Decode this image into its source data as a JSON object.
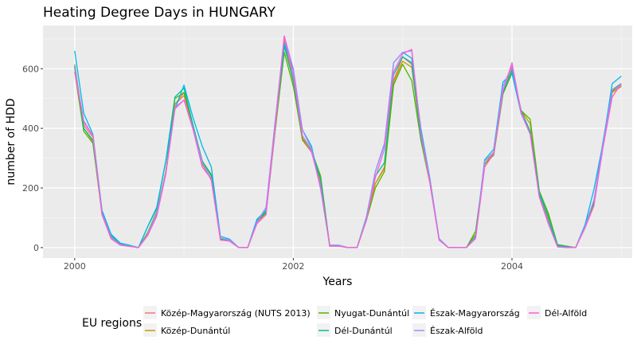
{
  "chart_data": {
    "type": "line",
    "title": "Heating Degree Days in HUNGARY",
    "xlabel": "Years",
    "ylabel": "number of HDD",
    "xlim": [
      1999.71,
      2005.1
    ],
    "ylim": [
      -35,
      745
    ],
    "x_ticks": [
      2000,
      2002,
      2004
    ],
    "x_tick_labels": [
      "2000",
      "2002",
      "2004"
    ],
    "y_ticks": [
      0,
      200,
      400,
      600
    ],
    "y_tick_labels": [
      "0",
      "200",
      "400",
      "600"
    ],
    "grid": true,
    "legend_title": "EU regions",
    "legend_position": "bottom",
    "x": [
      2000.0,
      2000.083,
      2000.167,
      2000.25,
      2000.333,
      2000.417,
      2000.5,
      2000.583,
      2000.667,
      2000.75,
      2000.833,
      2000.917,
      2001.0,
      2001.083,
      2001.167,
      2001.25,
      2001.333,
      2001.417,
      2001.5,
      2001.583,
      2001.667,
      2001.75,
      2001.833,
      2001.917,
      2002.0,
      2002.083,
      2002.167,
      2002.25,
      2002.333,
      2002.417,
      2002.5,
      2002.583,
      2002.667,
      2002.75,
      2002.833,
      2002.917,
      2003.0,
      2003.083,
      2003.167,
      2003.25,
      2003.333,
      2003.417,
      2003.5,
      2003.583,
      2003.667,
      2003.75,
      2003.833,
      2003.917,
      2004.0,
      2004.083,
      2004.167,
      2004.25,
      2004.333,
      2004.417,
      2004.5,
      2004.583,
      2004.667,
      2004.75,
      2004.833,
      2004.917,
      2005.0
    ],
    "series": [
      {
        "name": "Közép-Magyarország (NUTS 2013)",
        "color": "#F8766D",
        "values": [
          615,
          410,
          370,
          115,
          35,
          10,
          5,
          0,
          40,
          110,
          250,
          480,
          510,
          400,
          285,
          225,
          28,
          22,
          0,
          0,
          85,
          115,
          400,
          700,
          560,
          365,
          320,
          215,
          5,
          5,
          0,
          0,
          95,
          215,
          270,
          560,
          640,
          615,
          375,
          225,
          28,
          0,
          0,
          0,
          40,
          280,
          320,
          515,
          605,
          460,
          385,
          180,
          95,
          5,
          2,
          0,
          70,
          150,
          350,
          525,
          545
        ]
      },
      {
        "name": "Közép-Dunántúl",
        "color": "#C49A00",
        "values": [
          605,
          400,
          355,
          110,
          30,
          8,
          4,
          0,
          45,
          115,
          255,
          480,
          520,
          400,
          280,
          230,
          28,
          22,
          0,
          0,
          88,
          118,
          395,
          690,
          555,
          360,
          320,
          225,
          5,
          5,
          0,
          0,
          95,
          215,
          265,
          555,
          625,
          605,
          370,
          220,
          28,
          0,
          0,
          0,
          45,
          280,
          315,
          515,
          595,
          460,
          415,
          185,
          100,
          5,
          2,
          0,
          70,
          150,
          345,
          520,
          540
        ]
      },
      {
        "name": "Nyugat-Dunántúl",
        "color": "#53B400",
        "values": [
          590,
          390,
          350,
          115,
          35,
          10,
          5,
          0,
          50,
          120,
          250,
          500,
          520,
          410,
          290,
          245,
          30,
          22,
          0,
          0,
          90,
          115,
          390,
          655,
          540,
          365,
          325,
          240,
          5,
          5,
          0,
          0,
          90,
          200,
          255,
          545,
          615,
          560,
          360,
          215,
          28,
          0,
          0,
          0,
          55,
          280,
          310,
          515,
          585,
          460,
          430,
          190,
          115,
          10,
          5,
          0,
          70,
          145,
          350,
          525,
          550
        ]
      },
      {
        "name": "Dél-Dunántúl",
        "color": "#00C094",
        "values": [
          610,
          400,
          360,
          120,
          40,
          12,
          6,
          0,
          70,
          130,
          290,
          505,
          535,
          410,
          290,
          240,
          32,
          22,
          0,
          0,
          92,
          120,
          410,
          675,
          560,
          375,
          325,
          230,
          5,
          5,
          0,
          0,
          100,
          240,
          285,
          580,
          640,
          620,
          370,
          225,
          30,
          0,
          0,
          0,
          40,
          290,
          320,
          520,
          595,
          460,
          390,
          185,
          105,
          8,
          3,
          0,
          75,
          155,
          355,
          530,
          550
        ]
      },
      {
        "name": "Észak-Magyarország",
        "color": "#00B6EB",
        "values": [
          660,
          450,
          380,
          125,
          45,
          15,
          8,
          0,
          70,
          135,
          290,
          465,
          545,
          435,
          340,
          270,
          38,
          28,
          0,
          0,
          95,
          125,
          420,
          685,
          595,
          395,
          340,
          200,
          8,
          8,
          0,
          0,
          100,
          255,
          345,
          620,
          655,
          635,
          400,
          230,
          30,
          0,
          0,
          0,
          35,
          295,
          330,
          555,
          585,
          450,
          385,
          175,
          85,
          5,
          2,
          0,
          75,
          195,
          350,
          550,
          575
        ]
      },
      {
        "name": "Észak-Alföld",
        "color": "#A58AFF",
        "values": [
          600,
          425,
          375,
          115,
          35,
          10,
          5,
          0,
          45,
          115,
          250,
          470,
          495,
          400,
          285,
          230,
          32,
          25,
          0,
          0,
          85,
          135,
          420,
          710,
          600,
          395,
          330,
          195,
          8,
          8,
          0,
          0,
          95,
          255,
          350,
          620,
          655,
          660,
          385,
          225,
          28,
          0,
          0,
          0,
          35,
          290,
          320,
          540,
          610,
          450,
          380,
          170,
          80,
          3,
          1,
          0,
          70,
          160,
          345,
          530,
          545
        ]
      },
      {
        "name": "Dél-Alföld",
        "color": "#FB61D7",
        "values": [
          590,
          420,
          375,
          110,
          30,
          8,
          4,
          0,
          40,
          105,
          245,
          465,
          495,
          395,
          270,
          230,
          25,
          22,
          0,
          0,
          80,
          110,
          400,
          710,
          575,
          375,
          320,
          205,
          5,
          5,
          0,
          0,
          90,
          235,
          330,
          590,
          650,
          665,
          380,
          215,
          25,
          0,
          0,
          0,
          30,
          270,
          315,
          525,
          620,
          455,
          380,
          170,
          80,
          2,
          0,
          0,
          65,
          140,
          335,
          505,
          550
        ]
      }
    ]
  }
}
